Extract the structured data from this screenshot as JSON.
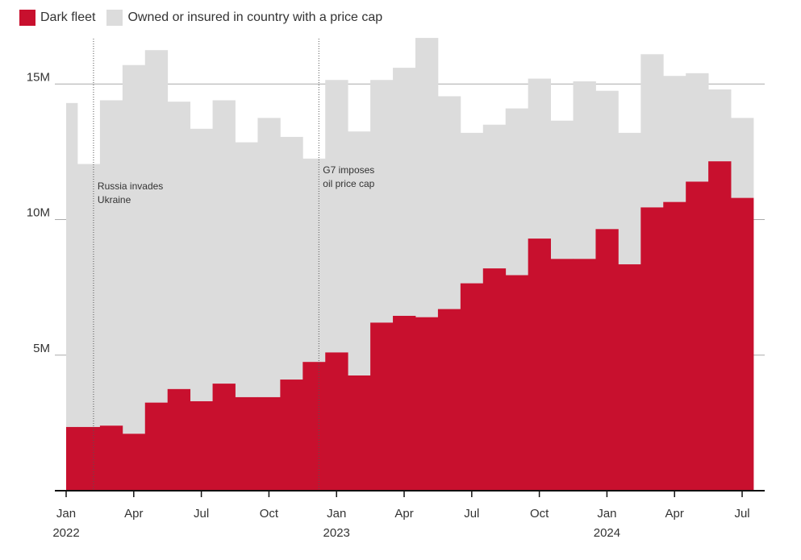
{
  "chart_data": {
    "type": "area",
    "title": "",
    "xlabel": "",
    "ylabel": "",
    "ylim": [
      0,
      17000000
    ],
    "grid": "horizontal",
    "legend_position": "top-left",
    "colors": {
      "dark_fleet": "#c8102e",
      "price_cap": "#dcdcdc"
    },
    "months": [
      "2022-01",
      "2022-02",
      "2022-03",
      "2022-04",
      "2022-05",
      "2022-06",
      "2022-07",
      "2022-08",
      "2022-09",
      "2022-10",
      "2022-11",
      "2022-12",
      "2023-01",
      "2023-02",
      "2023-03",
      "2023-04",
      "2023-05",
      "2023-06",
      "2023-07",
      "2023-08",
      "2023-09",
      "2023-10",
      "2023-11",
      "2023-12",
      "2024-01",
      "2024-02",
      "2024-03",
      "2024-04",
      "2024-05",
      "2024-06",
      "2024-07"
    ],
    "series": [
      {
        "name": "Dark fleet",
        "values": [
          2350000,
          2350000,
          2400000,
          2100000,
          3250000,
          3750000,
          3300000,
          3950000,
          3450000,
          3450000,
          4100000,
          4750000,
          5100000,
          4250000,
          6200000,
          6450000,
          6400000,
          6700000,
          7650000,
          8200000,
          7950000,
          9300000,
          8550000,
          8550000,
          9650000,
          8350000,
          10450000,
          10650000,
          11400000,
          12150000,
          10800000
        ]
      },
      {
        "name": "Owned or insured in country with a price cap",
        "values": [
          14300000,
          12050000,
          14400000,
          15700000,
          16250000,
          14350000,
          13350000,
          14400000,
          12850000,
          13750000,
          13050000,
          12250000,
          15150000,
          13250000,
          15150000,
          15600000,
          16700000,
          14550000,
          13200000,
          13500000,
          14100000,
          15200000,
          13650000,
          15100000,
          14750000,
          13200000,
          16100000,
          15300000,
          15400000,
          14800000,
          13750000
        ]
      }
    ],
    "y_ticks": [
      {
        "value": 5000000,
        "label": "5M"
      },
      {
        "value": 10000000,
        "label": "10M"
      },
      {
        "value": 15000000,
        "label": "15M"
      }
    ],
    "x_ticks": [
      {
        "month": "2022-01",
        "label": "Jan",
        "year": "2022"
      },
      {
        "month": "2022-04",
        "label": "Apr",
        "year": ""
      },
      {
        "month": "2022-07",
        "label": "Jul",
        "year": ""
      },
      {
        "month": "2022-10",
        "label": "Oct",
        "year": ""
      },
      {
        "month": "2023-01",
        "label": "Jan",
        "year": "2023"
      },
      {
        "month": "2023-04",
        "label": "Apr",
        "year": ""
      },
      {
        "month": "2023-07",
        "label": "Jul",
        "year": ""
      },
      {
        "month": "2023-10",
        "label": "Oct",
        "year": ""
      },
      {
        "month": "2024-01",
        "label": "Jan",
        "year": "2024"
      },
      {
        "month": "2024-04",
        "label": "Apr",
        "year": ""
      },
      {
        "month": "2024-07",
        "label": "Jul",
        "year": ""
      }
    ],
    "annotations": [
      {
        "month": "2022-02",
        "lines": [
          "Russia invades",
          "Ukraine"
        ]
      },
      {
        "month": "2022-12",
        "lines": [
          "G7 imposes",
          "oil price cap"
        ]
      }
    ]
  }
}
